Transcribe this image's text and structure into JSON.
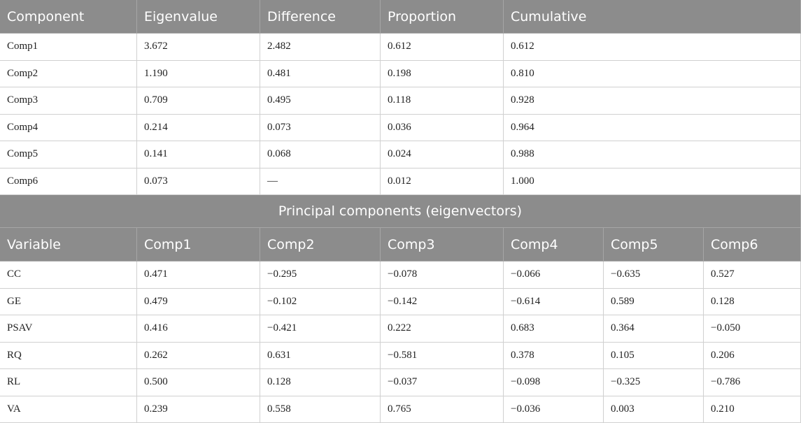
{
  "table1": {
    "columns": [
      "Component",
      "Eigenvalue",
      "Difference",
      "Proportion",
      "Cumulative"
    ],
    "rows": [
      [
        "Comp1",
        "3.672",
        "2.482",
        "0.612",
        "0.612"
      ],
      [
        "Comp2",
        "1.190",
        "0.481",
        "0.198",
        "0.810"
      ],
      [
        "Comp3",
        "0.709",
        "0.495",
        "0.118",
        "0.928"
      ],
      [
        "Comp4",
        "0.214",
        "0.073",
        "0.036",
        "0.964"
      ],
      [
        "Comp5",
        "0.141",
        "0.068",
        "0.024",
        "0.988"
      ],
      [
        "Comp6",
        "0.073",
        "—",
        "0.012",
        "1.000"
      ]
    ]
  },
  "section_title": "Principal components (eigenvectors)",
  "table2": {
    "columns": [
      "Variable",
      "Comp1",
      "Comp2",
      "Comp3",
      "Comp4",
      "Comp5",
      "Comp6"
    ],
    "rows": [
      [
        "CC",
        "0.471",
        "−0.295",
        "−0.078",
        "−0.066",
        "−0.635",
        "0.527"
      ],
      [
        "GE",
        "0.479",
        "−0.102",
        "−0.142",
        "−0.614",
        "0.589",
        "0.128"
      ],
      [
        "PSAV",
        "0.416",
        "−0.421",
        "0.222",
        "0.683",
        "0.364",
        "−0.050"
      ],
      [
        "RQ",
        "0.262",
        "0.631",
        "−0.581",
        "0.378",
        "0.105",
        "0.206"
      ],
      [
        "RL",
        "0.500",
        "0.128",
        "−0.037",
        "−0.098",
        "−0.325",
        "−0.786"
      ],
      [
        "VA",
        "0.239",
        "0.558",
        "0.765",
        "−0.036",
        "0.003",
        "0.210"
      ]
    ]
  }
}
